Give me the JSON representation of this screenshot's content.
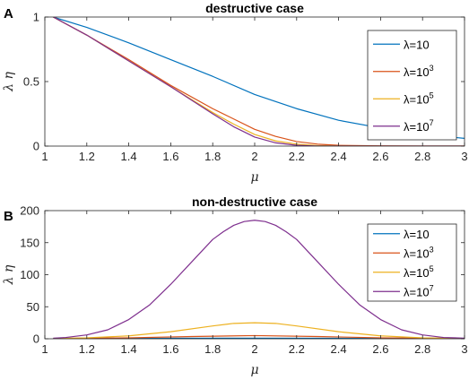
{
  "chart_data": [
    {
      "panel_label": "A",
      "type": "line",
      "title": "destructive case",
      "xlabel": "μ",
      "ylabel": "λ η",
      "xlim": [
        1,
        3
      ],
      "ylim": [
        0,
        1
      ],
      "xticks": [
        1,
        1.2,
        1.4,
        1.6,
        1.8,
        2,
        2.2,
        2.4,
        2.6,
        2.8,
        3
      ],
      "xtick_labels": [
        "1",
        "1.2",
        "1.4",
        "1.6",
        "1.8",
        "2",
        "2.2",
        "2.4",
        "2.6",
        "2.8",
        "3"
      ],
      "yticks": [
        0,
        0.5,
        1
      ],
      "ytick_labels": [
        "0",
        "0.5",
        "1"
      ],
      "legend_position": "top-right",
      "series": [
        {
          "label_base": "λ=10",
          "label_sup": "",
          "color": "#0072BD",
          "x": [
            1.04,
            1.2,
            1.4,
            1.6,
            1.8,
            2.0,
            2.2,
            2.4,
            2.6,
            2.8,
            3.0
          ],
          "y": [
            1.0,
            0.92,
            0.8,
            0.67,
            0.54,
            0.4,
            0.29,
            0.2,
            0.14,
            0.09,
            0.06
          ]
        },
        {
          "label_base": "λ=10",
          "label_sup": "3",
          "color": "#D95319",
          "x": [
            1.04,
            1.2,
            1.4,
            1.6,
            1.8,
            1.9,
            2.0,
            2.1,
            2.2,
            2.3,
            2.4,
            2.6,
            2.8,
            3.0
          ],
          "y": [
            1.0,
            0.86,
            0.67,
            0.47,
            0.29,
            0.21,
            0.13,
            0.075,
            0.035,
            0.015,
            0.006,
            0.002,
            0.0,
            0.0
          ]
        },
        {
          "label_base": "λ=10",
          "label_sup": "5",
          "color": "#EDB120",
          "x": [
            1.04,
            1.2,
            1.4,
            1.6,
            1.8,
            1.9,
            2.0,
            2.1,
            2.2,
            2.3,
            2.4,
            2.6,
            3.0
          ],
          "y": [
            1.0,
            0.86,
            0.66,
            0.46,
            0.26,
            0.17,
            0.09,
            0.04,
            0.015,
            0.004,
            0.0,
            0.0,
            0.0
          ]
        },
        {
          "label_base": "λ=10",
          "label_sup": "7",
          "color": "#7E2F8E",
          "x": [
            1.04,
            1.2,
            1.4,
            1.6,
            1.8,
            1.9,
            2.0,
            2.1,
            2.2,
            2.3,
            2.4,
            3.0
          ],
          "y": [
            1.0,
            0.86,
            0.66,
            0.46,
            0.25,
            0.15,
            0.07,
            0.025,
            0.006,
            0.0,
            0.0,
            0.0
          ]
        }
      ]
    },
    {
      "panel_label": "B",
      "type": "line",
      "title": "non-destructive case",
      "xlabel": "μ",
      "ylabel": "λ η",
      "xlim": [
        1,
        3
      ],
      "ylim": [
        0,
        200
      ],
      "xticks": [
        1,
        1.2,
        1.4,
        1.6,
        1.8,
        2,
        2.2,
        2.4,
        2.6,
        2.8,
        3
      ],
      "xtick_labels": [
        "1",
        "1.2",
        "1.4",
        "1.6",
        "1.8",
        "2",
        "2.2",
        "2.4",
        "2.6",
        "2.8",
        "3"
      ],
      "yticks": [
        0,
        50,
        100,
        150,
        200
      ],
      "ytick_labels": [
        "0",
        "50",
        "100",
        "150",
        "200"
      ],
      "legend_position": "right",
      "series": [
        {
          "label_base": "λ=10",
          "label_sup": "",
          "color": "#0072BD",
          "x": [
            1.04,
            1.5,
            2.0,
            2.5,
            3.0
          ],
          "y": [
            0.5,
            0.7,
            0.9,
            0.7,
            0.5
          ]
        },
        {
          "label_base": "λ=10",
          "label_sup": "3",
          "color": "#D95319",
          "x": [
            1.04,
            1.4,
            1.7,
            2.0,
            2.3,
            2.6,
            3.0
          ],
          "y": [
            0.5,
            1.5,
            3.5,
            5,
            3.5,
            1.5,
            0.5
          ]
        },
        {
          "label_base": "λ=10",
          "label_sup": "5",
          "color": "#EDB120",
          "x": [
            1.04,
            1.2,
            1.4,
            1.6,
            1.8,
            1.9,
            2.0,
            2.1,
            2.2,
            2.4,
            2.6,
            2.8,
            3.0
          ],
          "y": [
            0.3,
            1.5,
            4.5,
            11,
            20,
            24,
            25,
            24,
            20,
            11,
            4.5,
            1.5,
            0.3
          ]
        },
        {
          "label_base": "λ=10",
          "label_sup": "7",
          "color": "#7E2F8E",
          "x": [
            1.04,
            1.1,
            1.2,
            1.3,
            1.4,
            1.5,
            1.6,
            1.7,
            1.8,
            1.85,
            1.9,
            1.95,
            2.0,
            2.05,
            2.1,
            2.15,
            2.2,
            2.3,
            2.4,
            2.5,
            2.6,
            2.7,
            2.8,
            2.9,
            3.0
          ],
          "y": [
            1,
            2,
            6,
            14,
            30,
            53,
            85,
            120,
            155,
            167,
            177,
            183,
            185,
            183,
            177,
            167,
            155,
            120,
            85,
            53,
            30,
            14,
            6,
            2,
            1
          ]
        }
      ]
    }
  ]
}
